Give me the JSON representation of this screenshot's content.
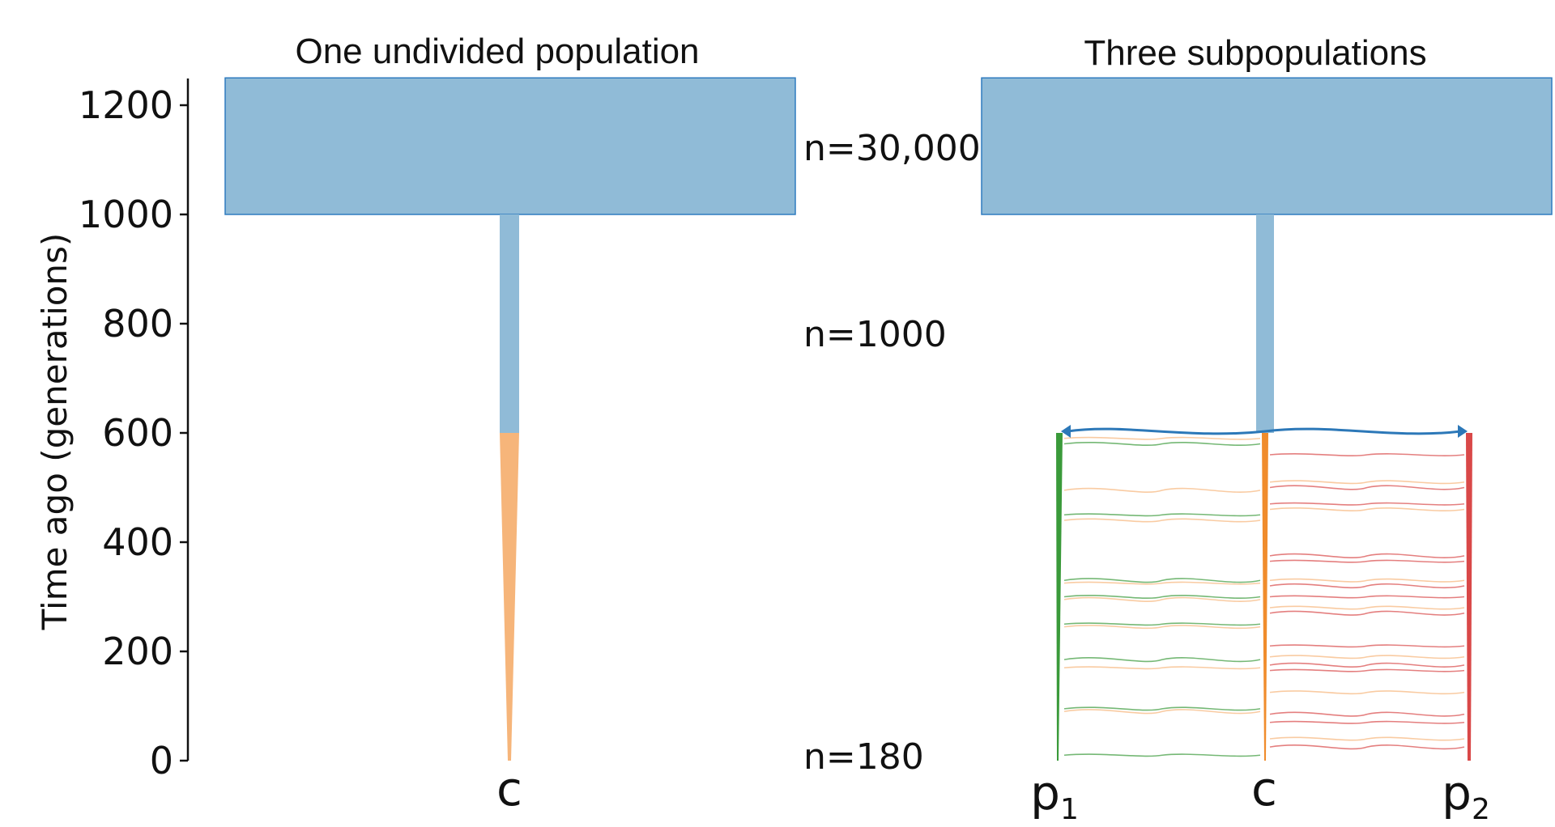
{
  "panels": {
    "left": {
      "title": "One undivided population",
      "populations": [
        "c"
      ]
    },
    "right": {
      "title": "Three subpopulations",
      "populations": [
        "p",
        "c",
        "p"
      ],
      "subscripts": [
        "1",
        "",
        "2"
      ]
    }
  },
  "axis": {
    "label": "Time ago (generations)",
    "ticks": [
      "0",
      "200",
      "400",
      "600",
      "800",
      "1000",
      "1200"
    ],
    "tick_values": [
      0,
      200,
      400,
      600,
      800,
      1000,
      1200
    ]
  },
  "sizes": {
    "ancestral": "n=30,000",
    "bottleneck": "n=1000",
    "present": "n=180"
  },
  "timeline": {
    "ancestral_start": 1250,
    "bottleneck_start": 1000,
    "split": 600,
    "present": 0
  },
  "colors": {
    "ancestral": "#90bbd7",
    "ancestral_edge": "#2f7bbf",
    "c": "#f6b57a",
    "c_edge": "#f08c2c",
    "p1": "#3a9a3a",
    "p2": "#d94848",
    "migration_main": "#2c78b8"
  },
  "migration": {
    "left_right_times": [
      590,
      580,
      495,
      450,
      440,
      330,
      325,
      300,
      295,
      250,
      245,
      185,
      170,
      95,
      90,
      10
    ],
    "c_p2_times": [
      560,
      510,
      500,
      470,
      460,
      375,
      365,
      330,
      320,
      300,
      280,
      270,
      210,
      190,
      175,
      165,
      125,
      85,
      70,
      40,
      25
    ]
  }
}
